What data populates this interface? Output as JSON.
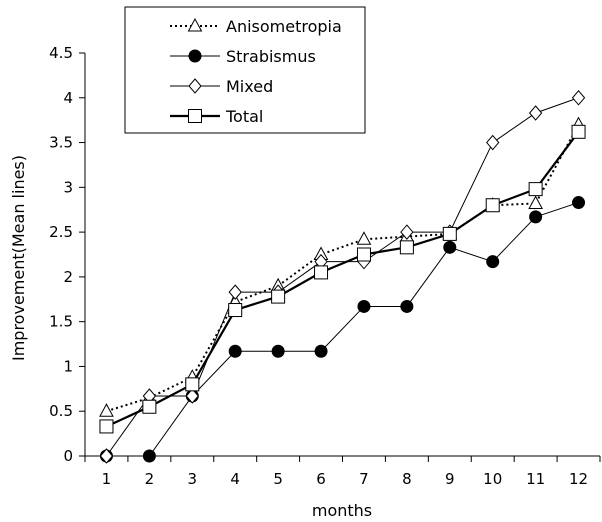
{
  "chart_data": {
    "type": "line",
    "title": "",
    "xlabel": "months",
    "ylabel": "Improvement(Mean lines)",
    "x": [
      1,
      2,
      3,
      4,
      5,
      6,
      7,
      8,
      9,
      10,
      11,
      12
    ],
    "xlim": [
      0.5,
      12.5
    ],
    "ylim": [
      0,
      4.5
    ],
    "yticks": [
      0,
      0.5,
      1,
      1.5,
      2,
      2.5,
      3,
      3.5,
      4,
      4.5
    ],
    "ytick_labels": [
      "0",
      "0.5",
      "1",
      "1.5",
      "2",
      "2.5",
      "3",
      "3.5",
      "4",
      "4.5"
    ],
    "xtick_labels": [
      "1",
      "2",
      "3",
      "4",
      "5",
      "6",
      "7",
      "8",
      "9",
      "10",
      "11",
      "12"
    ],
    "grid": false,
    "legend_position": "top-left",
    "series": [
      {
        "name": "Anisometropia",
        "marker": "triangle",
        "line_style": "dotted",
        "values": [
          0.5,
          0.65,
          0.88,
          1.72,
          1.9,
          2.25,
          2.42,
          2.45,
          2.48,
          2.8,
          2.82,
          3.7
        ]
      },
      {
        "name": "Strabismus",
        "marker": "filled-circle",
        "line_style": "solid-thin",
        "values": [
          0,
          0,
          0.67,
          1.17,
          1.17,
          1.17,
          1.67,
          1.67,
          2.33,
          2.17,
          2.67,
          2.83
        ]
      },
      {
        "name": "Mixed",
        "marker": "diamond",
        "line_style": "solid-thin",
        "values": [
          0,
          0.67,
          0.67,
          1.83,
          1.83,
          2.17,
          2.17,
          2.5,
          2.5,
          3.5,
          3.83,
          4.0
        ]
      },
      {
        "name": "Total",
        "marker": "square",
        "line_style": "solid-thick",
        "values": [
          0.33,
          0.55,
          0.8,
          1.63,
          1.78,
          2.05,
          2.25,
          2.33,
          2.48,
          2.8,
          2.98,
          3.62
        ]
      }
    ]
  }
}
